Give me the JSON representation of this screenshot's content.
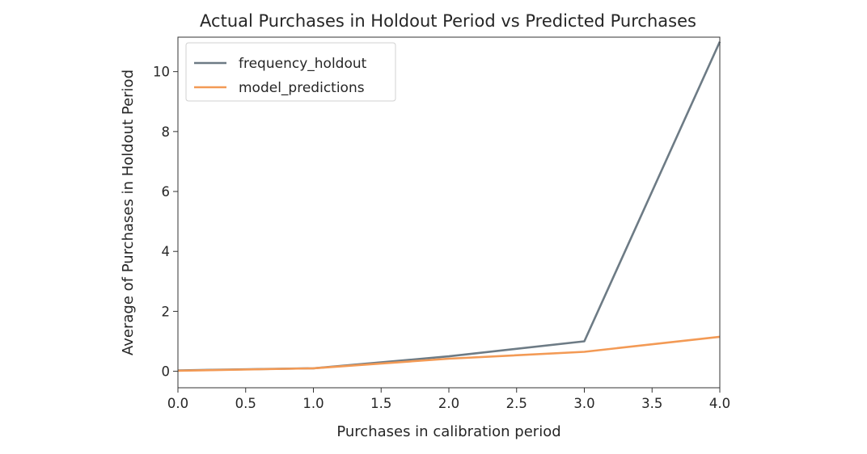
{
  "chart_data": {
    "type": "line",
    "title": "Actual Purchases in Holdout Period vs Predicted Purchases",
    "xlabel": "Purchases in calibration period",
    "ylabel": "Average of Purchases in Holdout Period",
    "xlim": [
      0.0,
      4.0
    ],
    "ylim": [
      -0.55,
      11.15
    ],
    "xticks": [
      0.0,
      0.5,
      1.0,
      1.5,
      2.0,
      2.5,
      3.0,
      3.5,
      4.0
    ],
    "xtick_labels": [
      "0.0",
      "0.5",
      "1.0",
      "1.5",
      "2.0",
      "2.5",
      "3.0",
      "3.5",
      "4.0"
    ],
    "yticks": [
      0,
      2,
      4,
      6,
      8,
      10
    ],
    "ytick_labels": [
      "0",
      "2",
      "4",
      "6",
      "8",
      "10"
    ],
    "grid": false,
    "legend_position": "top-left",
    "x": [
      0,
      1,
      2,
      3,
      4
    ],
    "series": [
      {
        "name": "frequency_holdout",
        "color": "#6d7b85",
        "values": [
          0.03,
          0.1,
          0.5,
          1.0,
          11.0
        ]
      },
      {
        "name": "model_predictions",
        "color": "#f39a55",
        "values": [
          0.02,
          0.1,
          0.42,
          0.65,
          1.15
        ]
      }
    ]
  }
}
